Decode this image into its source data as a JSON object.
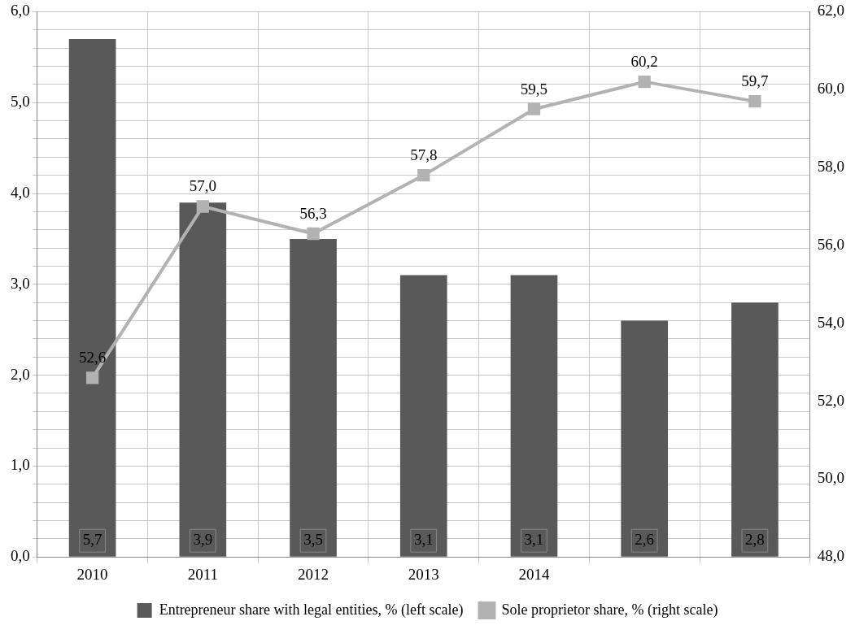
{
  "chart_data": {
    "type": "bar",
    "categories": [
      "2010",
      "2011",
      "2012",
      "2013",
      "2014",
      null,
      null
    ],
    "series": [
      {
        "name": "Entrepreneur share with legal entities, % (left scale)",
        "color": "#595959",
        "values": [
          5.7,
          3.9,
          3.5,
          3.1,
          3.1,
          2.6,
          2.8
        ],
        "value_labels": [
          "5,7",
          "3,9",
          "3,5",
          "3,1",
          "3,1",
          "2,6",
          "2,8"
        ]
      },
      {
        "name": "Sole proprietor share, % (right scale)",
        "type": "line",
        "axis": "y2",
        "color": "#b2b2b2",
        "values": [
          52.6,
          57.0,
          56.3,
          57.8,
          59.5,
          60.2,
          59.7
        ],
        "value_labels": [
          "52,6",
          "57,0",
          "56,3",
          "57,8",
          "59,5",
          "60,2",
          "59,7"
        ]
      }
    ],
    "ylim": [
      0,
      6
    ],
    "yticks": [
      {
        "value": 0,
        "label": "0,0"
      },
      {
        "value": 0.2,
        "label": null
      },
      {
        "value": 0.4,
        "label": null
      },
      {
        "value": 0.6,
        "label": null
      },
      {
        "value": 0.8,
        "label": null
      },
      {
        "value": 1,
        "label": "1,0"
      },
      {
        "value": 1.2,
        "label": null
      },
      {
        "value": 1.4,
        "label": null
      },
      {
        "value": 1.6,
        "label": null
      },
      {
        "value": 1.8,
        "label": null
      },
      {
        "value": 2,
        "label": "2,0"
      },
      {
        "value": 2.2,
        "label": null
      },
      {
        "value": 2.4,
        "label": null
      },
      {
        "value": 2.6,
        "label": null
      },
      {
        "value": 2.8,
        "label": null
      },
      {
        "value": 3,
        "label": "3,0"
      },
      {
        "value": 3.2,
        "label": null
      },
      {
        "value": 3.4,
        "label": null
      },
      {
        "value": 3.6,
        "label": null
      },
      {
        "value": 3.8,
        "label": null
      },
      {
        "value": 4,
        "label": "4,0"
      },
      {
        "value": 4.2,
        "label": null
      },
      {
        "value": 4.4,
        "label": null
      },
      {
        "value": 4.6,
        "label": null
      },
      {
        "value": 4.8,
        "label": null
      },
      {
        "value": 5,
        "label": "5,0"
      },
      {
        "value": 5.2,
        "label": null
      },
      {
        "value": 5.4,
        "label": null
      },
      {
        "value": 5.6,
        "label": null
      },
      {
        "value": 5.8,
        "label": null
      },
      {
        "value": 6,
        "label": "6,0"
      }
    ],
    "y2lim": [
      48,
      62
    ],
    "y2ticks": [
      {
        "value": 48,
        "label": "48,0"
      },
      {
        "value": 50,
        "label": "50,0"
      },
      {
        "value": 52,
        "label": "52,0"
      },
      {
        "value": 54,
        "label": "54,0"
      },
      {
        "value": 56,
        "label": "56,0"
      },
      {
        "value": 58,
        "label": "58,0"
      },
      {
        "value": 60,
        "label": "60,0"
      },
      {
        "value": 62,
        "label": "62,0"
      }
    ],
    "grid": true,
    "legend": "bottom",
    "marker": "square",
    "line_style": "solid"
  }
}
